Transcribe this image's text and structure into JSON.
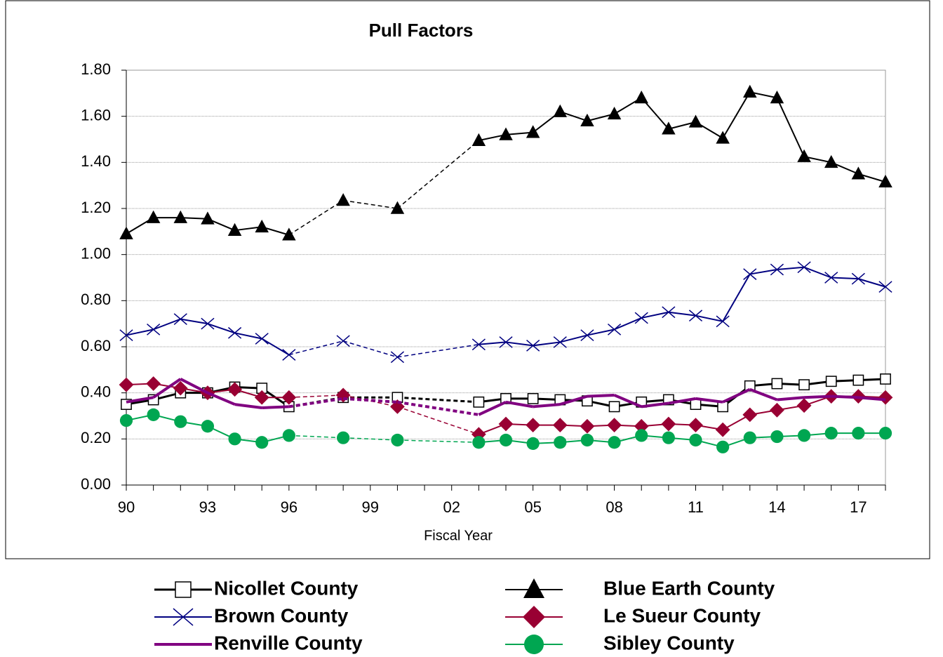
{
  "chart_data": {
    "type": "line",
    "title": "Pull Factors",
    "x_label": "Fiscal Year",
    "x": [
      1990,
      1991,
      1992,
      1993,
      1994,
      1995,
      1996,
      1998,
      2000,
      2003,
      2004,
      2005,
      2006,
      2007,
      2008,
      2009,
      2010,
      2011,
      2012,
      2013,
      2014,
      2015,
      2016,
      2017,
      2018
    ],
    "xlim": [
      1990,
      2018
    ],
    "xticks": [
      {
        "value": 1990,
        "label": "90"
      },
      {
        "value": 1993,
        "label": "93"
      },
      {
        "value": 1996,
        "label": "96"
      },
      {
        "value": 1999,
        "label": "99"
      },
      {
        "value": 2002,
        "label": "02"
      },
      {
        "value": 2005,
        "label": "05"
      },
      {
        "value": 2008,
        "label": "08"
      },
      {
        "value": 2011,
        "label": "11"
      },
      {
        "value": 2014,
        "label": "14"
      },
      {
        "value": 2017,
        "label": "17"
      }
    ],
    "xminorticks": [
      1991,
      1992,
      1994,
      1995,
      1997,
      1998,
      2000,
      2001,
      2003,
      2004,
      2006,
      2007,
      2009,
      2010,
      2012,
      2013,
      2015,
      2016,
      2018
    ],
    "ylim": [
      0,
      1.8
    ],
    "yticks": [
      {
        "value": 0,
        "label": "0.00"
      },
      {
        "value": 0.2,
        "label": "0.20"
      },
      {
        "value": 0.4,
        "label": "0.40"
      },
      {
        "value": 0.6,
        "label": "0.60"
      },
      {
        "value": 0.8,
        "label": "0.80"
      },
      {
        "value": 1,
        "label": "1.00"
      },
      {
        "value": 1.2,
        "label": "1.20"
      },
      {
        "value": 1.4,
        "label": "1.40"
      },
      {
        "value": 1.6,
        "label": "1.60"
      },
      {
        "value": 1.8,
        "label": "1.80"
      }
    ],
    "grid": true,
    "series": [
      {
        "name": "Nicollet County",
        "color": "#000000",
        "marker": "square",
        "line_width": 3,
        "values": [
          0.35,
          0.37,
          0.4,
          0.4,
          0.425,
          0.42,
          0.34,
          0.38,
          0.38,
          0.36,
          0.375,
          0.375,
          0.37,
          0.365,
          0.34,
          0.36,
          0.37,
          0.35,
          0.34,
          0.43,
          0.44,
          0.435,
          0.45,
          0.455,
          0.46
        ]
      },
      {
        "name": "Blue Earth County",
        "color": "#000000",
        "marker": "triangle",
        "line_width": 2,
        "values": [
          1.09,
          1.16,
          1.16,
          1.155,
          1.105,
          1.12,
          1.085,
          1.235,
          1.2,
          1.495,
          1.52,
          1.53,
          1.62,
          1.58,
          1.61,
          1.68,
          1.545,
          1.575,
          1.505,
          1.705,
          1.68,
          1.425,
          1.4,
          1.35,
          1.315
        ]
      },
      {
        "name": "Brown County",
        "color": "#000080",
        "marker": "x",
        "line_width": 2,
        "values": [
          0.65,
          0.675,
          0.72,
          0.7,
          0.66,
          0.635,
          0.565,
          0.625,
          0.555,
          0.61,
          0.62,
          0.605,
          0.62,
          0.65,
          0.675,
          0.725,
          0.75,
          0.735,
          0.71,
          0.915,
          0.935,
          0.945,
          0.9,
          0.895,
          0.86
        ]
      },
      {
        "name": "Le Sueur County",
        "color": "#990033",
        "marker": "diamond",
        "line_width": 2,
        "values": [
          0.435,
          0.44,
          0.42,
          0.4,
          0.415,
          0.38,
          0.38,
          0.39,
          0.34,
          0.22,
          0.265,
          0.26,
          0.26,
          0.255,
          0.26,
          0.255,
          0.265,
          0.26,
          0.24,
          0.305,
          0.325,
          0.345,
          0.385,
          0.385,
          0.38
        ]
      },
      {
        "name": "Renville County",
        "color": "#800080",
        "marker": "none",
        "line_width": 4,
        "values": [
          0.36,
          0.38,
          0.46,
          0.4,
          0.35,
          0.335,
          0.34,
          0.375,
          0.36,
          0.305,
          0.36,
          0.34,
          0.35,
          0.385,
          0.39,
          0.34,
          0.355,
          0.375,
          0.36,
          0.415,
          0.37,
          0.38,
          0.385,
          0.38,
          0.37
        ]
      },
      {
        "name": "Sibley County",
        "color": "#00a651",
        "marker": "circle",
        "line_width": 2,
        "values": [
          0.28,
          0.305,
          0.275,
          0.255,
          0.2,
          0.185,
          0.215,
          0.205,
          0.195,
          0.185,
          0.195,
          0.18,
          0.185,
          0.195,
          0.185,
          0.215,
          0.205,
          0.195,
          0.165,
          0.205,
          0.21,
          0.215,
          0.225,
          0.225,
          0.225
        ]
      }
    ]
  }
}
